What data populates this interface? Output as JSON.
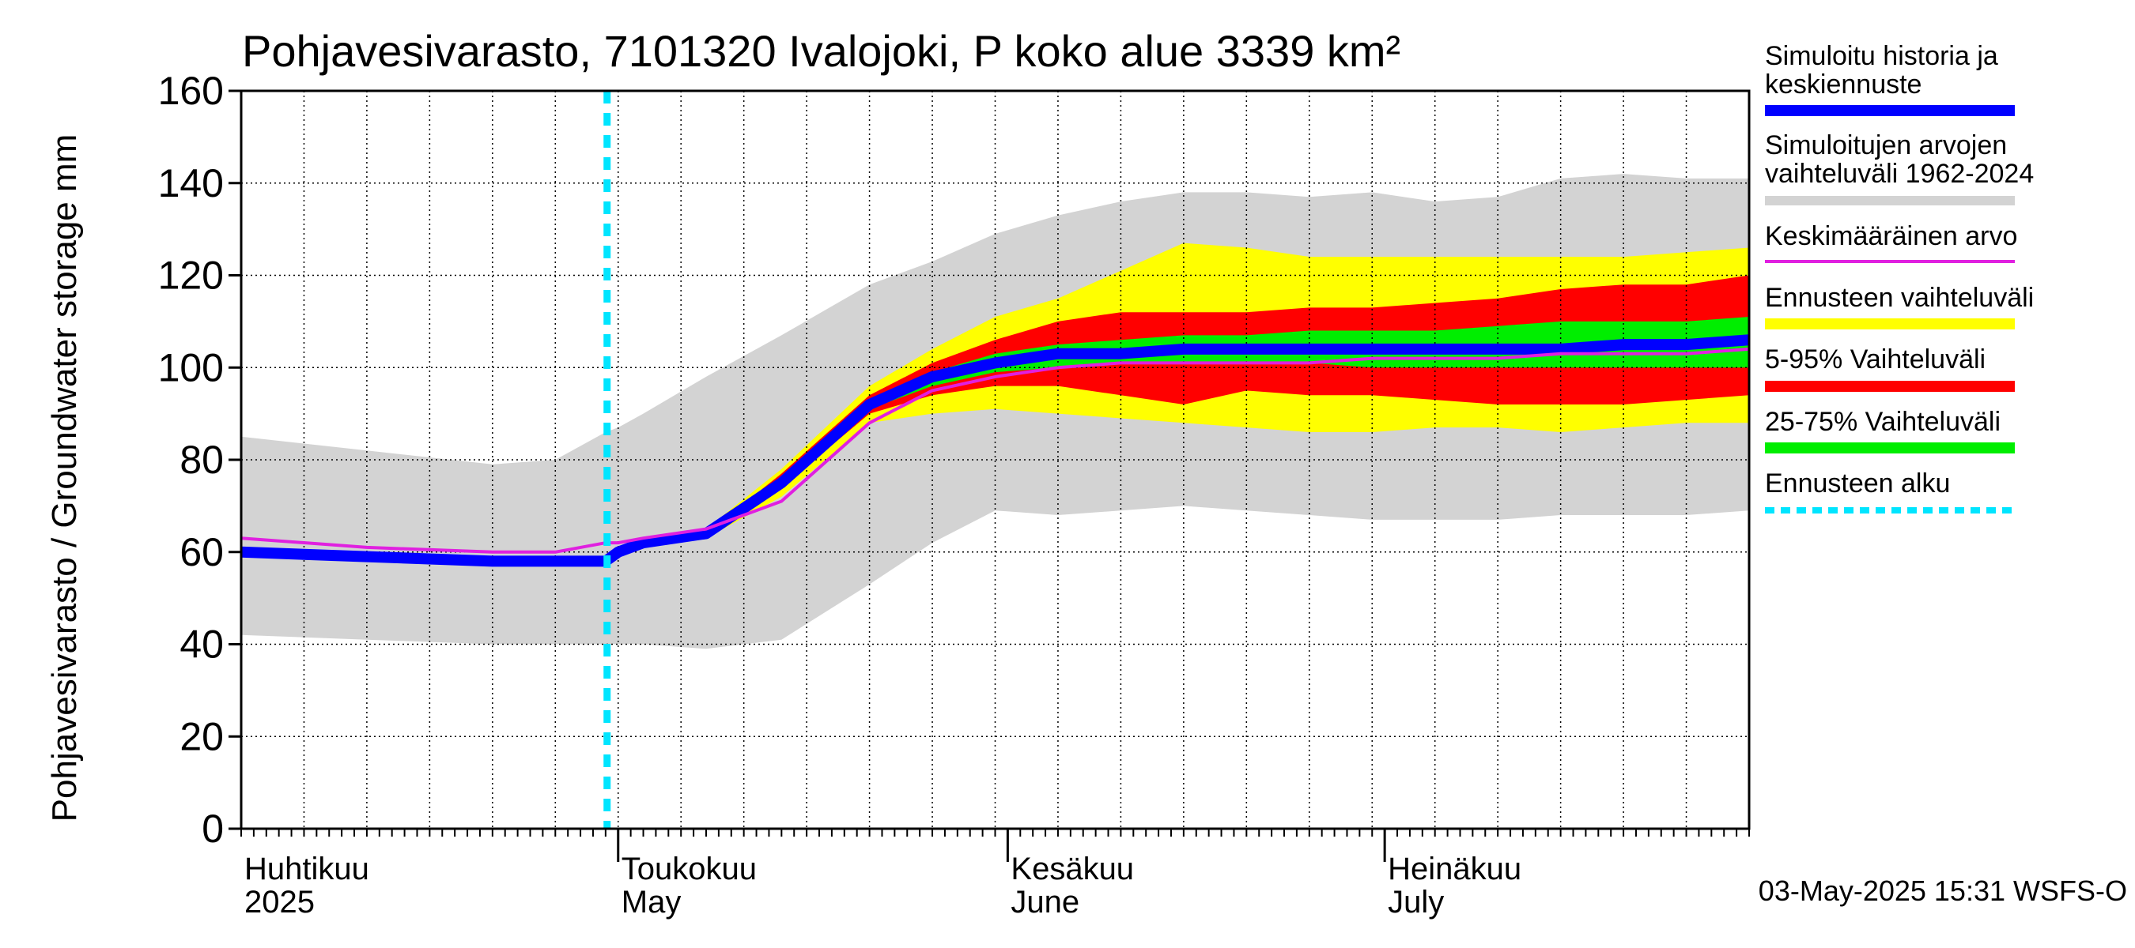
{
  "chart_data": {
    "type": "area",
    "title": "Pohjavesivarasto, 7101320 Ivalojoki, P koko alue 3339 km²",
    "ylabel": "Pohjavesivarasto / Groundwater storage   mm",
    "ylim": [
      0,
      160
    ],
    "yticks": [
      0,
      20,
      40,
      60,
      80,
      100,
      120,
      140,
      160
    ],
    "x_range_days": [
      0,
      120
    ],
    "x_start_date": "2025-04-01",
    "months": [
      {
        "day": 0,
        "label_fi": "Huhtikuu",
        "label_en": "2025"
      },
      {
        "day": 30,
        "label_fi": "Toukokuu",
        "label_en": "May"
      },
      {
        "day": 61,
        "label_fi": "Kesäkuu",
        "label_en": "June"
      },
      {
        "day": 91,
        "label_fi": "Heinäkuu",
        "label_en": "July"
      }
    ],
    "forecast_start_day": 30,
    "timestamp": "03-May-2025 15:31 WSFS-O",
    "days": [
      0,
      10,
      20,
      25,
      29,
      30,
      32,
      37,
      43,
      50,
      55,
      60,
      65,
      70,
      75,
      80,
      85,
      90,
      95,
      100,
      105,
      110,
      115,
      120
    ],
    "range_1962_2024": {
      "low": [
        42,
        41,
        40,
        40,
        40,
        40,
        40,
        39,
        41,
        53,
        62,
        69,
        68,
        69,
        70,
        69,
        68,
        67,
        67,
        67,
        68,
        68,
        68,
        69
      ],
      "high": [
        85,
        82,
        79,
        80,
        86,
        87,
        90,
        98,
        107,
        118,
        123,
        129,
        133,
        136,
        138,
        138,
        137,
        138,
        136,
        137,
        141,
        142,
        141,
        141
      ]
    },
    "forecast_range": {
      "low": [
        null,
        null,
        null,
        null,
        null,
        61,
        62,
        63,
        72,
        88,
        90,
        91,
        90,
        89,
        88,
        87,
        86,
        86,
        87,
        87,
        86,
        87,
        88,
        88
      ],
      "high": [
        null,
        null,
        null,
        null,
        null,
        61,
        62,
        65,
        78,
        96,
        104,
        111,
        115,
        121,
        127,
        126,
        124,
        124,
        124,
        124,
        124,
        124,
        125,
        126
      ]
    },
    "p5_95": {
      "low": [
        null,
        null,
        null,
        null,
        null,
        61,
        62,
        63,
        74,
        90,
        94,
        96,
        96,
        94,
        92,
        95,
        94,
        94,
        93,
        92,
        92,
        92,
        93,
        94
      ],
      "high": [
        null,
        null,
        null,
        null,
        null,
        61,
        62,
        64,
        77,
        94,
        101,
        106,
        110,
        112,
        112,
        112,
        113,
        113,
        114,
        115,
        117,
        118,
        118,
        120
      ]
    },
    "p25_75": {
      "low": [
        null,
        null,
        null,
        null,
        null,
        61,
        62,
        64,
        75,
        91,
        96,
        99,
        100,
        101,
        101,
        101,
        101,
        100,
        100,
        100,
        100,
        100,
        100,
        100
      ],
      "high": [
        null,
        null,
        null,
        null,
        null,
        61,
        62,
        64,
        76,
        92,
        99,
        103,
        105,
        106,
        107,
        107,
        108,
        108,
        108,
        109,
        110,
        110,
        110,
        111
      ]
    },
    "series": [
      {
        "name": "Simuloitu historia ja keskiennuste",
        "color": "#0000ff",
        "values": [
          60,
          59,
          58,
          58,
          58,
          60,
          62,
          64,
          75,
          92,
          98,
          101,
          103,
          103,
          104,
          104,
          104,
          104,
          104,
          104,
          104,
          105,
          105,
          106
        ]
      },
      {
        "name": "Keskimääräinen arvo",
        "color": "#e020e0",
        "values": [
          63,
          61,
          60,
          60,
          62,
          62,
          63,
          65,
          71,
          88,
          95,
          98,
          100,
          101,
          101,
          101,
          101,
          102,
          102,
          102,
          103,
          103,
          103,
          104
        ]
      }
    ],
    "legend": [
      {
        "label": "Simuloitu historia ja keskiennuste",
        "color": "#0000ff",
        "style": "thick"
      },
      {
        "label": "Simuloitujen arvojen vaihteluväli 1962-2024",
        "color": "#d3d3d3",
        "style": "band"
      },
      {
        "label": "Keskimääräinen arvo",
        "color": "#e020e0",
        "style": "line"
      },
      {
        "label": "Ennusteen vaihteluväli",
        "color": "#ffff00",
        "style": "band"
      },
      {
        "label": "5-95% Vaihteluväli",
        "color": "#ff0000",
        "style": "band"
      },
      {
        "label": "25-75% Vaihteluväli",
        "color": "#00ee00",
        "style": "band"
      },
      {
        "label": "Ennusteen alku",
        "color": "#00e5ff",
        "style": "dashed"
      }
    ]
  }
}
